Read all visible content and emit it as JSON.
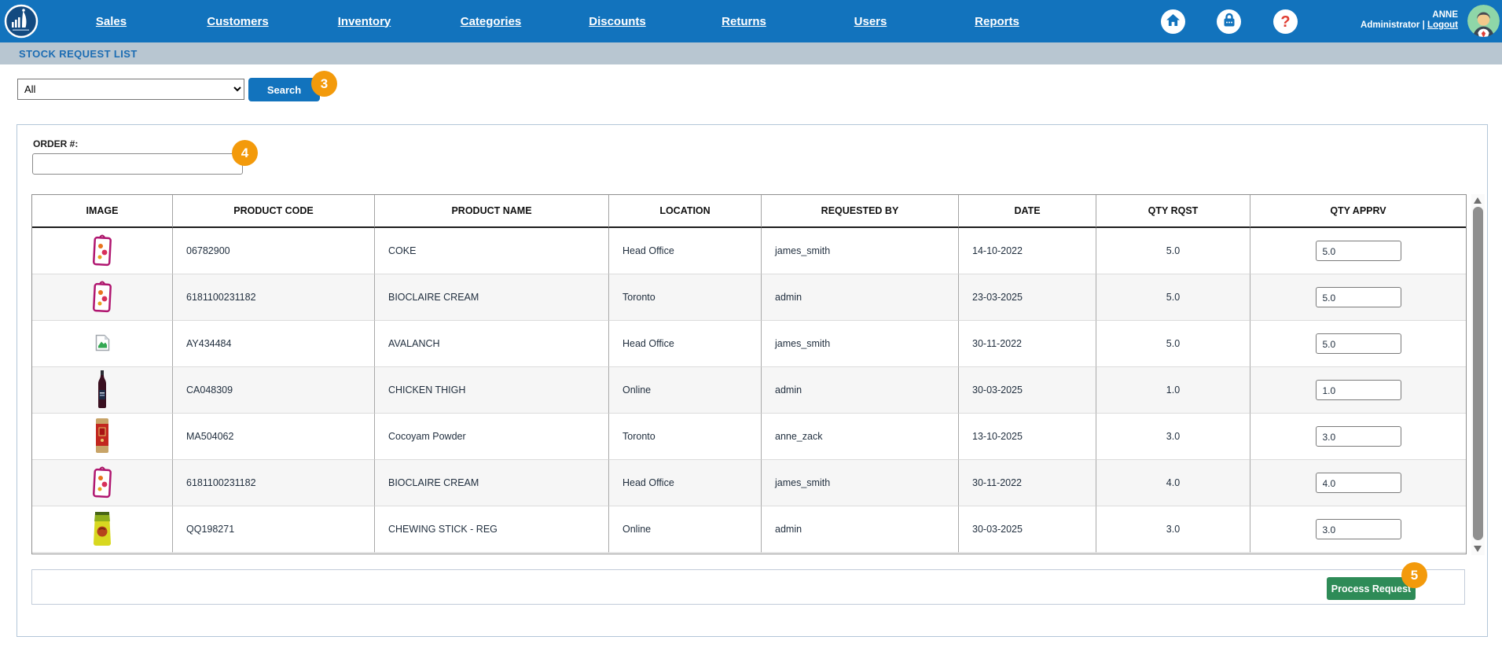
{
  "nav": {
    "items": [
      {
        "label": "Sales"
      },
      {
        "label": "Customers"
      },
      {
        "label": "Inventory"
      },
      {
        "label": "Categories"
      },
      {
        "label": "Discounts"
      },
      {
        "label": "Returns"
      },
      {
        "label": "Users"
      },
      {
        "label": "Reports"
      }
    ],
    "icons": [
      "home-icon",
      "lock-icon",
      "help-icon"
    ],
    "help_glyph": "?",
    "user": {
      "name": "ANNE",
      "role": "Administrator",
      "separator": "|",
      "logout_label": "Logout"
    }
  },
  "breadcrumb": {
    "title": "STOCK REQUEST LIST"
  },
  "filter": {
    "dropdown_value": "All",
    "search_label": "Search",
    "badge": "3"
  },
  "order": {
    "label": "ORDER #:",
    "value": "",
    "badge": "4"
  },
  "table": {
    "headers": [
      "IMAGE",
      "PRODUCT CODE",
      "PRODUCT NAME",
      "LOCATION",
      "REQUESTED BY",
      "DATE",
      "QTY RQST",
      "QTY APPRV"
    ],
    "rows": [
      {
        "image": "pink-sachet",
        "code": "06782900",
        "name": "COKE",
        "location": "Head Office",
        "requested_by": "james_smith",
        "date": "14-10-2022",
        "qty_rqst": "5.0",
        "qty_apprv": "5.0"
      },
      {
        "image": "pink-sachet",
        "code": "6181100231182",
        "name": "BIOCLAIRE CREAM",
        "location": "Toronto",
        "requested_by": "admin",
        "date": "23-03-2025",
        "qty_rqst": "5.0",
        "qty_apprv": "5.0"
      },
      {
        "image": "broken-image",
        "code": "AY434484",
        "name": "AVALANCH",
        "location": "Head Office",
        "requested_by": "james_smith",
        "date": "30-11-2022",
        "qty_rqst": "5.0",
        "qty_apprv": "5.0"
      },
      {
        "image": "dark-bottle",
        "code": "CA048309",
        "name": "CHICKEN THIGH",
        "location": "Online",
        "requested_by": "admin",
        "date": "30-03-2025",
        "qty_rqst": "1.0",
        "qty_apprv": "1.0"
      },
      {
        "image": "red-packet",
        "code": "MA504062",
        "name": "Cocoyam Powder",
        "location": "Toronto",
        "requested_by": "anne_zack",
        "date": "13-10-2025",
        "qty_rqst": "3.0",
        "qty_apprv": "3.0"
      },
      {
        "image": "pink-sachet",
        "code": "6181100231182",
        "name": "BIOCLAIRE CREAM",
        "location": "Head Office",
        "requested_by": "james_smith",
        "date": "30-11-2022",
        "qty_rqst": "4.0",
        "qty_apprv": "4.0"
      },
      {
        "image": "green-pouch",
        "code": "QQ198271",
        "name": "CHEWING STICK - REG",
        "location": "Online",
        "requested_by": "admin",
        "date": "30-03-2025",
        "qty_rqst": "3.0",
        "qty_apprv": "3.0"
      }
    ]
  },
  "footer": {
    "process_label": "Process Request",
    "badge": "5"
  },
  "colors": {
    "nav_blue": "#1273bd",
    "breadcrumb_bg": "#b8c6d1",
    "breadcrumb_text": "#1b6cb3",
    "badge_orange": "#f39a0b",
    "process_green": "#2e8b57",
    "help_red": "#e03c31"
  }
}
